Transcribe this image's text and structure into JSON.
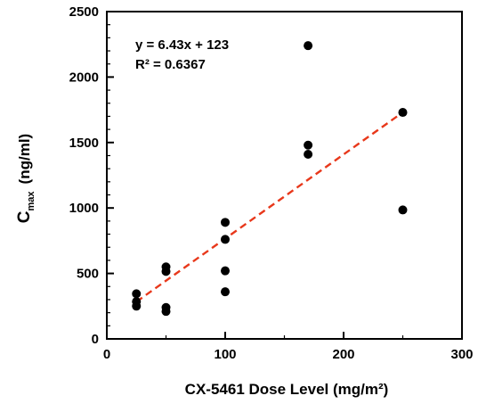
{
  "chart_data": {
    "type": "scatter",
    "xlabel": "CX-5461 Dose Level (mg/m²)",
    "ylabel": {
      "prefix": "C",
      "subscript": "max",
      "unit": "(ng/ml)"
    },
    "xlim": [
      0,
      300
    ],
    "ylim": [
      0,
      2500
    ],
    "x_ticks": [
      0,
      100,
      200,
      300
    ],
    "y_ticks": [
      0,
      500,
      1000,
      1500,
      2000,
      2500
    ],
    "x_minor_step": 50,
    "y_minor_step": 100,
    "grid": false,
    "legend": "none",
    "series": [
      {
        "marker_color": "#000000",
        "points": [
          {
            "x": 25,
            "y": 345
          },
          {
            "x": 25,
            "y": 285
          },
          {
            "x": 25,
            "y": 250
          },
          {
            "x": 50,
            "y": 550
          },
          {
            "x": 50,
            "y": 515
          },
          {
            "x": 50,
            "y": 240
          },
          {
            "x": 50,
            "y": 210
          },
          {
            "x": 100,
            "y": 890
          },
          {
            "x": 100,
            "y": 760
          },
          {
            "x": 100,
            "y": 520
          },
          {
            "x": 100,
            "y": 360
          },
          {
            "x": 170,
            "y": 2240
          },
          {
            "x": 170,
            "y": 1480
          },
          {
            "x": 170,
            "y": 1410
          },
          {
            "x": 250,
            "y": 1730
          },
          {
            "x": 250,
            "y": 985
          }
        ]
      }
    ],
    "trendline": {
      "slope": 6.43,
      "intercept": 123,
      "x_range": [
        25,
        250
      ],
      "color": "#e8381b",
      "style": "dashed"
    },
    "annotations": [
      "y = 6.43x + 123",
      "R² = 0.6367"
    ]
  }
}
